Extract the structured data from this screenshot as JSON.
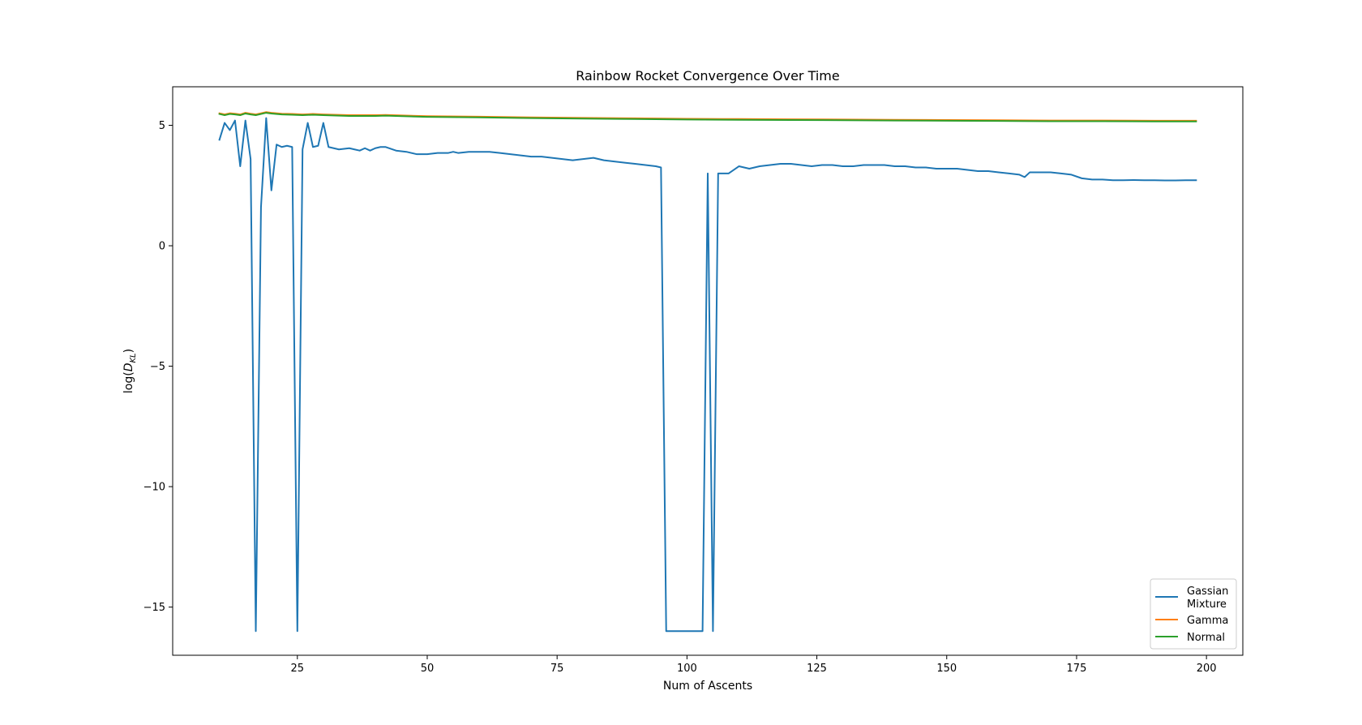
{
  "chart_data": {
    "type": "line",
    "title": "Rainbow Rocket Convergence Over Time",
    "xlabel": "Num of Ascents",
    "ylabel": "log(D_KL)",
    "xlim": [
      1,
      207
    ],
    "ylim": [
      -17,
      6.6
    ],
    "xticks": [
      25,
      50,
      75,
      100,
      125,
      150,
      175,
      200
    ],
    "yticks": [
      5,
      0,
      -5,
      -10,
      -15
    ],
    "ytick_labels": [
      "5",
      "0",
      "−5",
      "−10",
      "−15"
    ],
    "grid": false,
    "legend": "lower-right",
    "series": [
      {
        "name": "Gassian Mixture",
        "color": "#1f77b4",
        "points": [
          [
            10,
            4.4
          ],
          [
            11,
            5.1
          ],
          [
            12,
            4.8
          ],
          [
            13,
            5.2
          ],
          [
            14,
            3.3
          ],
          [
            15,
            5.2
          ],
          [
            16,
            3.6
          ],
          [
            17,
            -16.0
          ],
          [
            18,
            1.6
          ],
          [
            19,
            5.3
          ],
          [
            20,
            2.3
          ],
          [
            21,
            4.2
          ],
          [
            22,
            4.1
          ],
          [
            23,
            4.15
          ],
          [
            24,
            4.1
          ],
          [
            25,
            -16.0
          ],
          [
            26,
            4.0
          ],
          [
            27,
            5.1
          ],
          [
            28,
            4.1
          ],
          [
            29,
            4.15
          ],
          [
            30,
            5.1
          ],
          [
            31,
            4.1
          ],
          [
            32,
            4.05
          ],
          [
            33,
            4.0
          ],
          [
            35,
            4.05
          ],
          [
            36,
            4.0
          ],
          [
            37,
            3.95
          ],
          [
            38,
            4.05
          ],
          [
            39,
            3.95
          ],
          [
            40,
            4.05
          ],
          [
            41,
            4.1
          ],
          [
            42,
            4.1
          ],
          [
            44,
            3.95
          ],
          [
            46,
            3.9
          ],
          [
            48,
            3.8
          ],
          [
            50,
            3.8
          ],
          [
            52,
            3.85
          ],
          [
            54,
            3.85
          ],
          [
            55,
            3.9
          ],
          [
            56,
            3.85
          ],
          [
            58,
            3.9
          ],
          [
            60,
            3.9
          ],
          [
            62,
            3.9
          ],
          [
            64,
            3.85
          ],
          [
            66,
            3.8
          ],
          [
            68,
            3.75
          ],
          [
            70,
            3.7
          ],
          [
            72,
            3.7
          ],
          [
            74,
            3.65
          ],
          [
            76,
            3.6
          ],
          [
            78,
            3.55
          ],
          [
            80,
            3.6
          ],
          [
            82,
            3.65
          ],
          [
            84,
            3.55
          ],
          [
            86,
            3.5
          ],
          [
            88,
            3.45
          ],
          [
            90,
            3.4
          ],
          [
            92,
            3.35
          ],
          [
            94,
            3.3
          ],
          [
            95,
            3.25
          ],
          [
            96,
            -16.0
          ],
          [
            103,
            -16.0
          ],
          [
            104,
            3.0
          ],
          [
            105,
            -16.0
          ],
          [
            106,
            3.0
          ],
          [
            108,
            3.0
          ],
          [
            110,
            3.3
          ],
          [
            112,
            3.2
          ],
          [
            114,
            3.3
          ],
          [
            116,
            3.35
          ],
          [
            118,
            3.4
          ],
          [
            120,
            3.4
          ],
          [
            122,
            3.35
          ],
          [
            124,
            3.3
          ],
          [
            126,
            3.35
          ],
          [
            128,
            3.35
          ],
          [
            130,
            3.3
          ],
          [
            132,
            3.3
          ],
          [
            134,
            3.35
          ],
          [
            136,
            3.35
          ],
          [
            138,
            3.35
          ],
          [
            140,
            3.3
          ],
          [
            142,
            3.3
          ],
          [
            144,
            3.25
          ],
          [
            146,
            3.25
          ],
          [
            148,
            3.2
          ],
          [
            150,
            3.2
          ],
          [
            152,
            3.2
          ],
          [
            154,
            3.15
          ],
          [
            156,
            3.1
          ],
          [
            158,
            3.1
          ],
          [
            160,
            3.05
          ],
          [
            162,
            3.0
          ],
          [
            164,
            2.95
          ],
          [
            165,
            2.85
          ],
          [
            166,
            3.05
          ],
          [
            168,
            3.05
          ],
          [
            170,
            3.05
          ],
          [
            172,
            3.0
          ],
          [
            174,
            2.95
          ],
          [
            176,
            2.8
          ],
          [
            178,
            2.75
          ],
          [
            180,
            2.75
          ],
          [
            182,
            2.72
          ],
          [
            184,
            2.72
          ],
          [
            186,
            2.73
          ],
          [
            188,
            2.72
          ],
          [
            190,
            2.72
          ],
          [
            192,
            2.71
          ],
          [
            194,
            2.71
          ],
          [
            196,
            2.72
          ],
          [
            198,
            2.72
          ]
        ]
      },
      {
        "name": "Gamma",
        "color": "#ff7f0e",
        "points": [
          [
            10,
            5.5
          ],
          [
            11,
            5.45
          ],
          [
            12,
            5.5
          ],
          [
            13,
            5.48
          ],
          [
            14,
            5.45
          ],
          [
            15,
            5.52
          ],
          [
            16,
            5.48
          ],
          [
            17,
            5.45
          ],
          [
            18,
            5.5
          ],
          [
            19,
            5.55
          ],
          [
            20,
            5.52
          ],
          [
            22,
            5.48
          ],
          [
            24,
            5.47
          ],
          [
            26,
            5.45
          ],
          [
            28,
            5.47
          ],
          [
            30,
            5.45
          ],
          [
            35,
            5.42
          ],
          [
            40,
            5.42
          ],
          [
            42,
            5.43
          ],
          [
            50,
            5.38
          ],
          [
            60,
            5.36
          ],
          [
            70,
            5.33
          ],
          [
            80,
            5.31
          ],
          [
            90,
            5.29
          ],
          [
            100,
            5.27
          ],
          [
            110,
            5.26
          ],
          [
            120,
            5.25
          ],
          [
            130,
            5.24
          ],
          [
            140,
            5.23
          ],
          [
            150,
            5.22
          ],
          [
            160,
            5.21
          ],
          [
            170,
            5.2
          ],
          [
            180,
            5.2
          ],
          [
            190,
            5.19
          ],
          [
            198,
            5.19
          ]
        ]
      },
      {
        "name": "Normal",
        "color": "#2ca02c",
        "points": [
          [
            10,
            5.47
          ],
          [
            11,
            5.42
          ],
          [
            12,
            5.47
          ],
          [
            13,
            5.45
          ],
          [
            14,
            5.42
          ],
          [
            15,
            5.49
          ],
          [
            16,
            5.45
          ],
          [
            17,
            5.42
          ],
          [
            18,
            5.47
          ],
          [
            19,
            5.52
          ],
          [
            20,
            5.49
          ],
          [
            22,
            5.45
          ],
          [
            24,
            5.44
          ],
          [
            26,
            5.42
          ],
          [
            28,
            5.44
          ],
          [
            30,
            5.42
          ],
          [
            35,
            5.39
          ],
          [
            40,
            5.39
          ],
          [
            42,
            5.4
          ],
          [
            50,
            5.35
          ],
          [
            60,
            5.33
          ],
          [
            70,
            5.3
          ],
          [
            80,
            5.28
          ],
          [
            90,
            5.26
          ],
          [
            100,
            5.24
          ],
          [
            110,
            5.23
          ],
          [
            120,
            5.22
          ],
          [
            130,
            5.21
          ],
          [
            140,
            5.2
          ],
          [
            150,
            5.19
          ],
          [
            160,
            5.18
          ],
          [
            170,
            5.17
          ],
          [
            180,
            5.17
          ],
          [
            190,
            5.16
          ],
          [
            198,
            5.16
          ]
        ]
      }
    ],
    "legend_entries": [
      {
        "line1": "Gassian",
        "line2": "Mixture",
        "color": "#1f77b4"
      },
      {
        "line1": "Gamma",
        "line2": "",
        "color": "#ff7f0e"
      },
      {
        "line1": "Normal",
        "line2": "",
        "color": "#2ca02c"
      }
    ]
  }
}
